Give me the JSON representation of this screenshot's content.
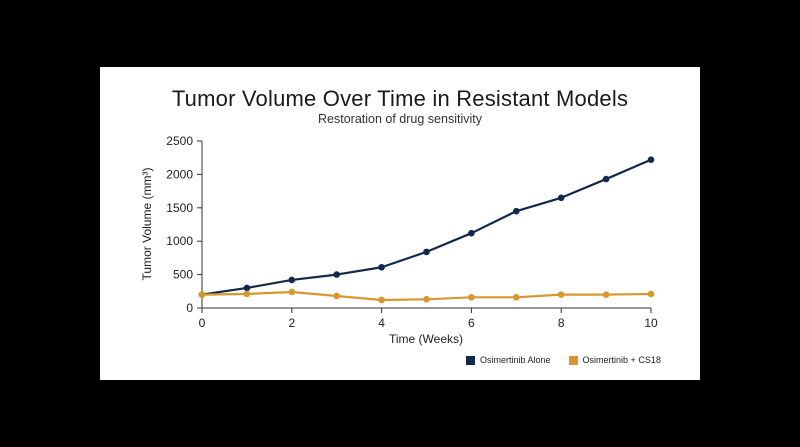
{
  "chart_data": {
    "type": "line",
    "title": "Tumor Volume Over Time in Resistant Models",
    "subtitle": "Restoration of drug sensitivity",
    "xlabel": "Time (Weeks)",
    "ylabel": "Tumor Volume (mm³)",
    "xlim": [
      0,
      10
    ],
    "ylim": [
      0,
      2500
    ],
    "xticks": [
      0,
      2,
      4,
      6,
      8,
      10
    ],
    "yticks": [
      0,
      500,
      1000,
      1500,
      2000,
      2500
    ],
    "grid": false,
    "legend_position": "bottom-right",
    "x": [
      0,
      1,
      2,
      3,
      4,
      5,
      6,
      7,
      8,
      9,
      10
    ],
    "series": [
      {
        "name": "Osimertinib Alone",
        "color": "#13294b",
        "values": [
          200,
          300,
          420,
          500,
          610,
          840,
          1120,
          1450,
          1650,
          1930,
          2220
        ]
      },
      {
        "name": "Osimertinib + CS18",
        "color": "#d8972f",
        "values": [
          200,
          210,
          240,
          180,
          120,
          130,
          160,
          160,
          200,
          200,
          210
        ]
      }
    ]
  }
}
